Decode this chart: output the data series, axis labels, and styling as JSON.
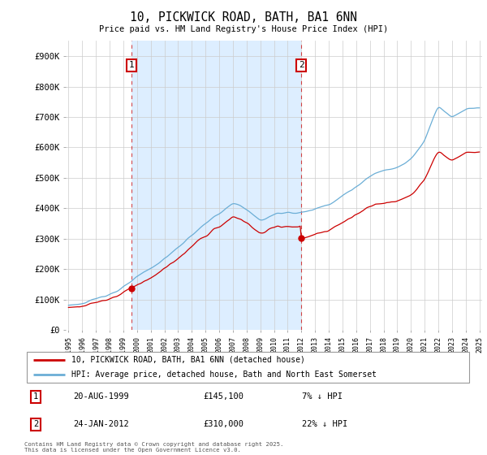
{
  "title": "10, PICKWICK ROAD, BATH, BA1 6NN",
  "subtitle": "Price paid vs. HM Land Registry's House Price Index (HPI)",
  "background_color": "#ffffff",
  "plot_bg_color": "#ffffff",
  "shade_color": "#ddeeff",
  "grid_color": "#cccccc",
  "ylim": [
    0,
    950000
  ],
  "yticks": [
    0,
    100000,
    200000,
    300000,
    400000,
    500000,
    600000,
    700000,
    800000,
    900000
  ],
  "ytick_labels": [
    "£0",
    "£100K",
    "£200K",
    "£300K",
    "£400K",
    "£500K",
    "£600K",
    "£700K",
    "£800K",
    "£900K"
  ],
  "hpi_color": "#6baed6",
  "price_color": "#cc0000",
  "dashed_line_color": "#cc0000",
  "marker1_value": 145100,
  "marker2_value": 310000,
  "legend_line1": "10, PICKWICK ROAD, BATH, BA1 6NN (detached house)",
  "legend_line2": "HPI: Average price, detached house, Bath and North East Somerset",
  "table_row1": [
    "1",
    "20-AUG-1999",
    "£145,100",
    "7% ↓ HPI"
  ],
  "table_row2": [
    "2",
    "24-JAN-2012",
    "£310,000",
    "22% ↓ HPI"
  ],
  "footnote": "Contains HM Land Registry data © Crown copyright and database right 2025.\nThis data is licensed under the Open Government Licence v3.0.",
  "start_year": 1995,
  "end_year": 2025
}
